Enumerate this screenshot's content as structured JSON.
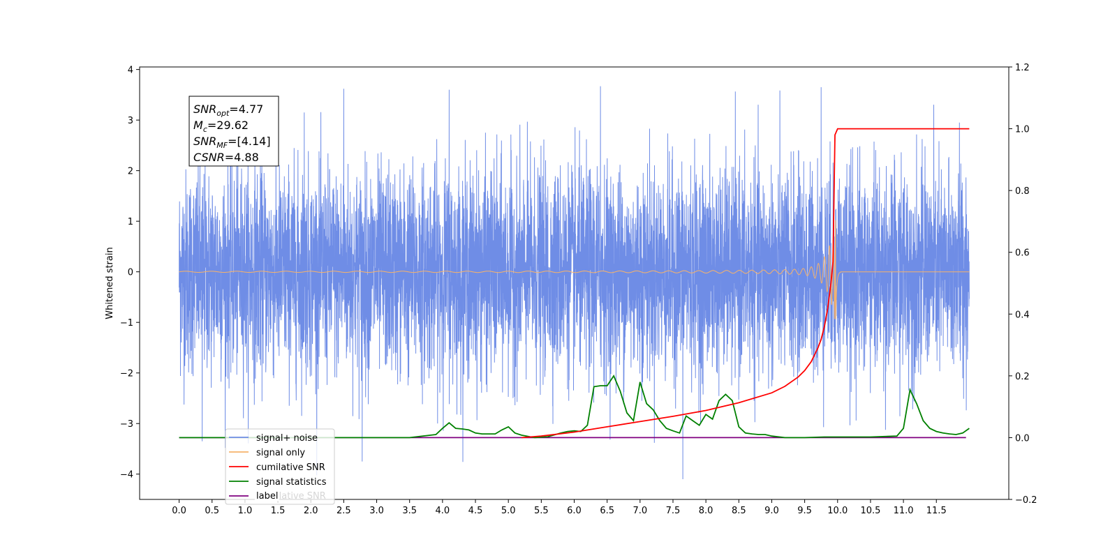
{
  "chart_data": {
    "type": "line",
    "title": "",
    "xlabel": "",
    "ylabel": "Whitened strain",
    "xlim": [
      -0.6,
      12.6
    ],
    "ylim": [
      -4.5,
      4.05
    ],
    "y2lim": [
      -0.2,
      1.2
    ],
    "grid": false,
    "legend_position": "bottom-left",
    "x_ticks": [
      "0.0",
      "0.5",
      "1.0",
      "1.5",
      "2.0",
      "2.5",
      "3.0",
      "3.5",
      "4.0",
      "4.5",
      "5.0",
      "5.5",
      "6.0",
      "6.5",
      "7.0",
      "7.5",
      "8.0",
      "8.5",
      "9.0",
      "9.5",
      "10.0",
      "10.5",
      "11.0",
      "11.5"
    ],
    "y_ticks": [
      "4",
      "3",
      "2",
      "1",
      "0",
      "−1",
      "−2",
      "−3",
      "−4"
    ],
    "y2_ticks": [
      "1.2",
      "1.0",
      "0.8",
      "0.6",
      "0.4",
      "0.2",
      "0.0",
      "−0.2"
    ],
    "annotation": {
      "lines": [
        {
          "sym": "SNR",
          "sub": "opt",
          "val": "=4.77"
        },
        {
          "sym": "M",
          "sub": "c",
          "val": "=29.62"
        },
        {
          "sym": "SNR",
          "sub": "MF",
          "val": "=[4.14]"
        },
        {
          "sym": "CSNR",
          "sub": "",
          "val": "=4.88"
        }
      ]
    },
    "series": [
      {
        "name": "signal+ noise",
        "color": "#6f8de6",
        "axis": "left",
        "kind": "noise",
        "x_range": [
          0,
          12.0
        ],
        "std": 1.0,
        "peaks": [
          [
            0.35,
            -3.35
          ],
          [
            1.9,
            3.15
          ],
          [
            2.5,
            3.62
          ],
          [
            2.78,
            -3.75
          ],
          [
            4.1,
            3.6
          ],
          [
            6.4,
            3.67
          ],
          [
            7.65,
            -4.1
          ],
          [
            9.75,
            3.65
          ],
          [
            11.85,
            2.95
          ]
        ]
      },
      {
        "name": "signal only",
        "color": "#f6b26b",
        "axis": "left",
        "kind": "chirp",
        "x_range": [
          0,
          12.0
        ],
        "merger": 9.97,
        "peak_amp": 1.05
      },
      {
        "name": "cumilative SNR",
        "color": "#ff0000",
        "axis": "right",
        "x": [
          5.2,
          5.5,
          6.0,
          6.5,
          7.0,
          7.5,
          8.0,
          8.5,
          9.0,
          9.2,
          9.4,
          9.5,
          9.6,
          9.7,
          9.75,
          9.8,
          9.85,
          9.9,
          9.93,
          9.96,
          10.0,
          11.0,
          12.0
        ],
        "y": [
          0.0,
          0.005,
          0.018,
          0.035,
          0.052,
          0.069,
          0.088,
          0.113,
          0.145,
          0.166,
          0.196,
          0.217,
          0.246,
          0.29,
          0.318,
          0.36,
          0.418,
          0.5,
          0.57,
          0.98,
          1.0,
          1.0,
          1.0
        ]
      },
      {
        "name": "signal statistics",
        "color": "#008000",
        "axis": "right",
        "x": [
          0.0,
          3.5,
          3.9,
          4.0,
          4.1,
          4.2,
          4.3,
          4.4,
          4.5,
          4.6,
          4.8,
          4.9,
          5.0,
          5.1,
          5.2,
          5.4,
          5.6,
          5.8,
          5.9,
          6.0,
          6.1,
          6.2,
          6.3,
          6.4,
          6.5,
          6.6,
          6.7,
          6.8,
          6.9,
          7.0,
          7.1,
          7.2,
          7.3,
          7.4,
          7.5,
          7.6,
          7.7,
          7.8,
          7.9,
          8.0,
          8.1,
          8.2,
          8.3,
          8.4,
          8.5,
          8.6,
          8.7,
          8.8,
          8.9,
          9.0,
          9.2,
          9.5,
          9.8,
          10.0,
          10.5,
          10.9,
          11.0,
          11.1,
          11.2,
          11.3,
          11.4,
          11.5,
          11.6,
          11.7,
          11.8,
          11.9,
          12.0
        ],
        "y": [
          0.0,
          0.0,
          0.01,
          0.03,
          0.048,
          0.03,
          0.028,
          0.025,
          0.015,
          0.012,
          0.012,
          0.025,
          0.035,
          0.015,
          0.008,
          0.0,
          0.003,
          0.015,
          0.02,
          0.022,
          0.02,
          0.04,
          0.165,
          0.168,
          0.168,
          0.2,
          0.15,
          0.08,
          0.055,
          0.18,
          0.11,
          0.09,
          0.055,
          0.03,
          0.022,
          0.015,
          0.07,
          0.055,
          0.04,
          0.075,
          0.06,
          0.12,
          0.14,
          0.12,
          0.035,
          0.015,
          0.012,
          0.01,
          0.01,
          0.005,
          0.0,
          0.0,
          0.002,
          0.002,
          0.002,
          0.005,
          0.03,
          0.155,
          0.11,
          0.055,
          0.03,
          0.02,
          0.015,
          0.012,
          0.01,
          0.015,
          0.03
        ]
      },
      {
        "name": "label",
        "color": "#800080",
        "axis": "right",
        "x": [
          0.0,
          11.95
        ],
        "y": [
          0.0,
          0.0
        ]
      }
    ],
    "legend_overlay_text": "cumilative SNR"
  }
}
